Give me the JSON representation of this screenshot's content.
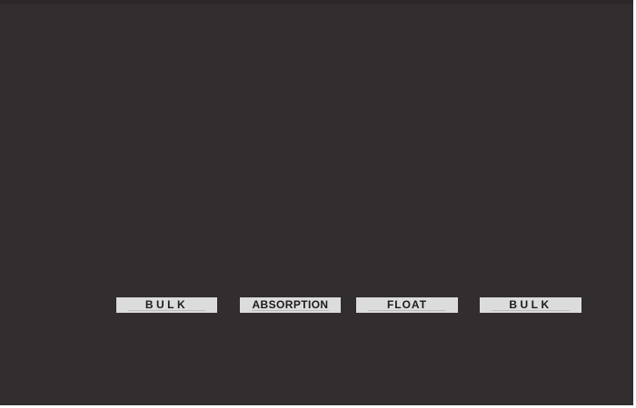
{
  "colors": {
    "page": "#ffffff",
    "canvas": "#322d2e",
    "canvas_top": "#2c282a",
    "label_bg": "#dcdcdc",
    "label_text": "#1c1a1b",
    "label_underline": "#b3b0ae"
  },
  "labels": [
    {
      "text": "BULK",
      "style": "letter-spacing:3.5px"
    },
    {
      "text": "ABSORPTION",
      "style": "letter-spacing:0.4px"
    },
    {
      "text": "FLOAT",
      "style": "letter-spacing:1px"
    },
    {
      "text": "BULK",
      "style": "letter-spacing:3.5px"
    }
  ]
}
